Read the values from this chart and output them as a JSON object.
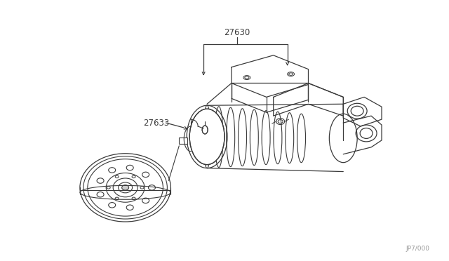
{
  "background_color": "#ffffff",
  "line_color": "#3a3a3a",
  "label_color": "#3a3a3a",
  "part_label_27630": "27630",
  "part_label_27633": "27633",
  "watermark": "JP7/000",
  "fig_width": 6.4,
  "fig_height": 3.72,
  "dpi": 100
}
